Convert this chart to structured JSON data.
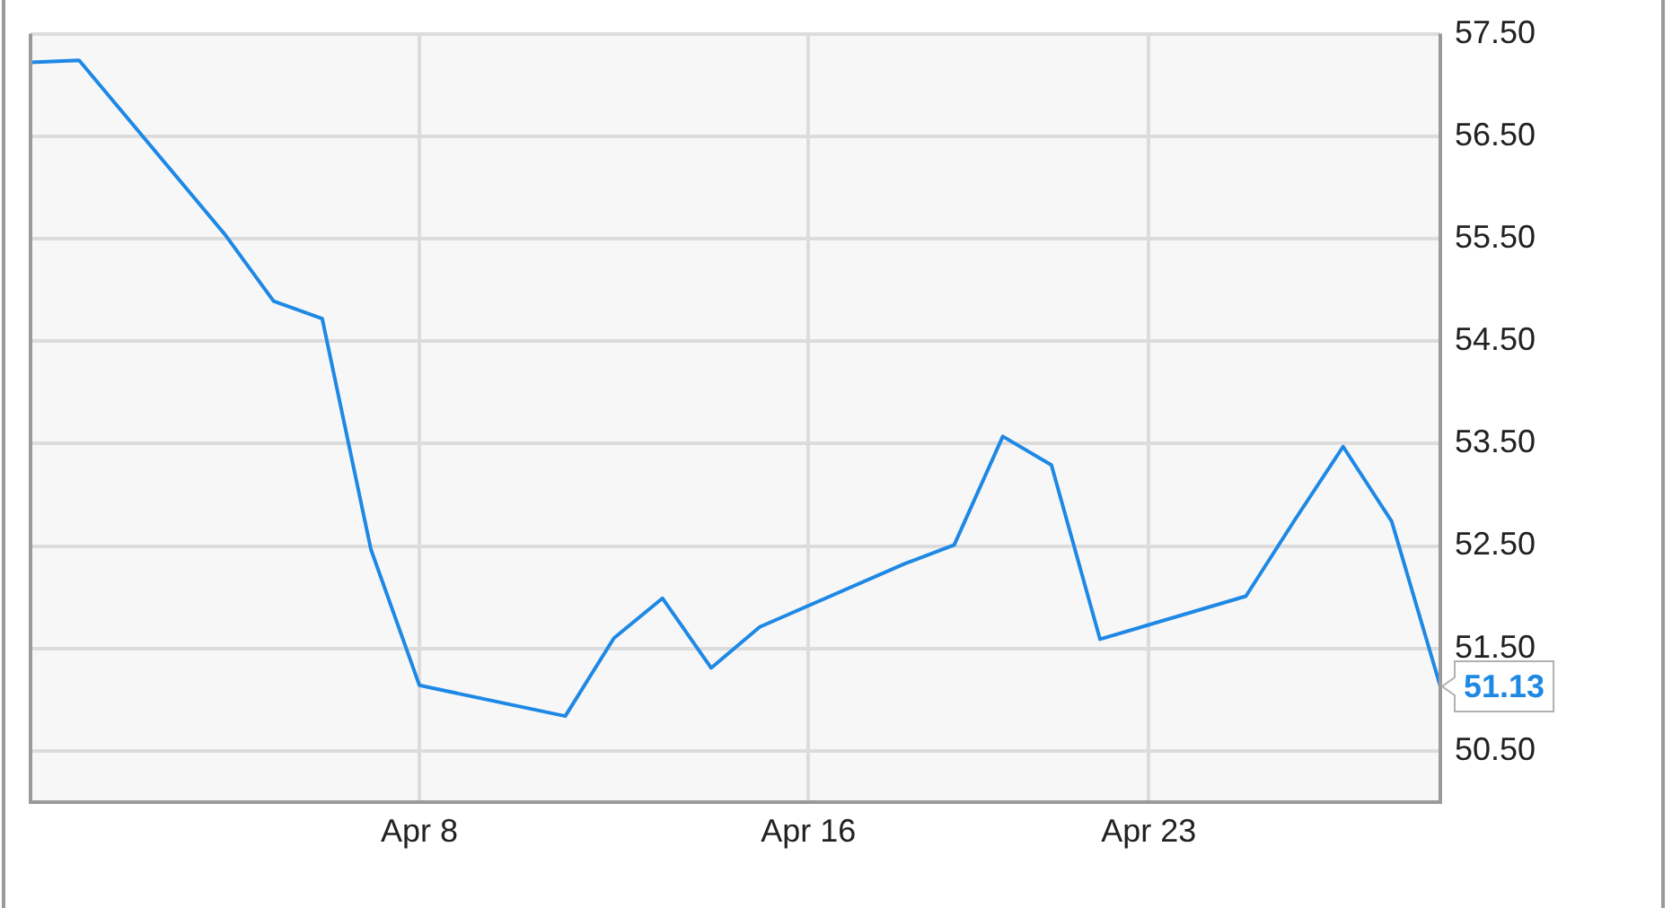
{
  "chart_data": {
    "type": "line",
    "x": [
      "--03-31",
      "--04-01",
      "--04-04",
      "--04-05",
      "--04-06",
      "--04-07",
      "--04-08",
      "--04-11",
      "--04-12",
      "--04-13",
      "--04-14",
      "--04-15",
      "--04-18",
      "--04-19",
      "--04-20",
      "--04-21",
      "--04-22",
      "--04-25",
      "--04-26",
      "--04-27",
      "--04-28",
      "--04-29"
    ],
    "values": [
      57.22,
      57.24,
      55.54,
      54.89,
      54.72,
      52.47,
      51.14,
      50.84,
      51.6,
      51.99,
      51.31,
      51.71,
      52.33,
      52.51,
      53.57,
      53.29,
      51.59,
      52.01,
      52.75,
      53.47,
      52.74,
      51.13
    ],
    "value_labels": [
      null,
      null,
      null,
      null,
      null,
      null,
      null,
      null,
      null,
      null,
      null,
      null,
      null,
      null,
      null,
      null,
      null,
      null,
      null,
      null,
      null,
      "51.13"
    ],
    "color": "#1e88e5",
    "xlim": [
      "--03-31",
      "--04-29"
    ],
    "xticks": [
      {
        "value": "--04-08",
        "label": "Apr 8"
      },
      {
        "value": "--04-16",
        "label": "Apr 16"
      },
      {
        "value": "--04-23",
        "label": "Apr 23"
      }
    ],
    "ylim": [
      50,
      57.5
    ],
    "yticks": [
      {
        "value": 50.5,
        "label": "50.50"
      },
      {
        "value": 51.5,
        "label": "51.50"
      },
      {
        "value": 52.5,
        "label": "52.50"
      },
      {
        "value": 53.5,
        "label": "53.50"
      },
      {
        "value": 54.5,
        "label": "54.50"
      },
      {
        "value": 55.5,
        "label": "55.50"
      },
      {
        "value": 56.5,
        "label": "56.50"
      },
      {
        "value": 57.5,
        "label": "57.50"
      }
    ],
    "grid": true
  }
}
